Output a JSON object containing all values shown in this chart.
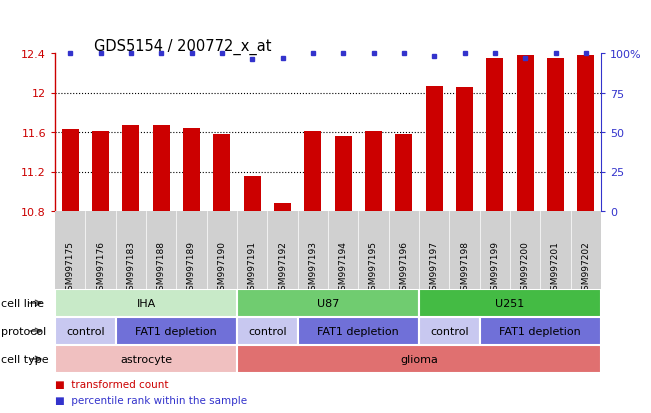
{
  "title": "GDS5154 / 200772_x_at",
  "samples": [
    "GSM997175",
    "GSM997176",
    "GSM997183",
    "GSM997188",
    "GSM997189",
    "GSM997190",
    "GSM997191",
    "GSM997192",
    "GSM997193",
    "GSM997194",
    "GSM997195",
    "GSM997196",
    "GSM997197",
    "GSM997198",
    "GSM997199",
    "GSM997200",
    "GSM997201",
    "GSM997202"
  ],
  "bar_values": [
    11.63,
    11.61,
    11.67,
    11.67,
    11.64,
    11.58,
    11.15,
    10.88,
    11.61,
    11.56,
    11.61,
    11.58,
    12.07,
    12.06,
    12.35,
    12.38,
    12.35,
    12.38
  ],
  "percentile_values": [
    100,
    100,
    100,
    100,
    100,
    100,
    96,
    97,
    100,
    100,
    100,
    100,
    98,
    100,
    100,
    97,
    100,
    100
  ],
  "ymin": 10.8,
  "ymax": 12.4,
  "yticks": [
    10.8,
    11.2,
    11.6,
    12.0,
    12.4
  ],
  "ytick_labels": [
    "10.8",
    "11.2",
    "11.6",
    "12",
    "12.4"
  ],
  "right_yticks": [
    0,
    25,
    50,
    75,
    100
  ],
  "right_ytick_labels": [
    "0",
    "25",
    "50",
    "75",
    "100%"
  ],
  "bar_color": "#cc0000",
  "dot_color": "#3333cc",
  "chart_bg": "#ffffff",
  "xtick_bg": "#d0d0d0",
  "cell_line_row": {
    "label": "cell line",
    "groups": [
      {
        "text": "IHA",
        "start": 0,
        "end": 6,
        "color": "#c8eac8"
      },
      {
        "text": "U87",
        "start": 6,
        "end": 12,
        "color": "#70cc70"
      },
      {
        "text": "U251",
        "start": 12,
        "end": 18,
        "color": "#44bb44"
      }
    ]
  },
  "protocol_row": {
    "label": "protocol",
    "groups": [
      {
        "text": "control",
        "start": 0,
        "end": 2,
        "color": "#c8c8f0"
      },
      {
        "text": "FAT1 depletion",
        "start": 2,
        "end": 6,
        "color": "#7070d8"
      },
      {
        "text": "control",
        "start": 6,
        "end": 8,
        "color": "#c8c8f0"
      },
      {
        "text": "FAT1 depletion",
        "start": 8,
        "end": 12,
        "color": "#7070d8"
      },
      {
        "text": "control",
        "start": 12,
        "end": 14,
        "color": "#c8c8f0"
      },
      {
        "text": "FAT1 depletion",
        "start": 14,
        "end": 18,
        "color": "#7070d8"
      }
    ]
  },
  "cell_type_row": {
    "label": "cell type",
    "groups": [
      {
        "text": "astrocyte",
        "start": 0,
        "end": 6,
        "color": "#f0c0c0"
      },
      {
        "text": "glioma",
        "start": 6,
        "end": 18,
        "color": "#e07070"
      }
    ]
  },
  "legend": [
    {
      "color": "#cc0000",
      "label": "transformed count"
    },
    {
      "color": "#3333cc",
      "label": "percentile rank within the sample"
    }
  ]
}
